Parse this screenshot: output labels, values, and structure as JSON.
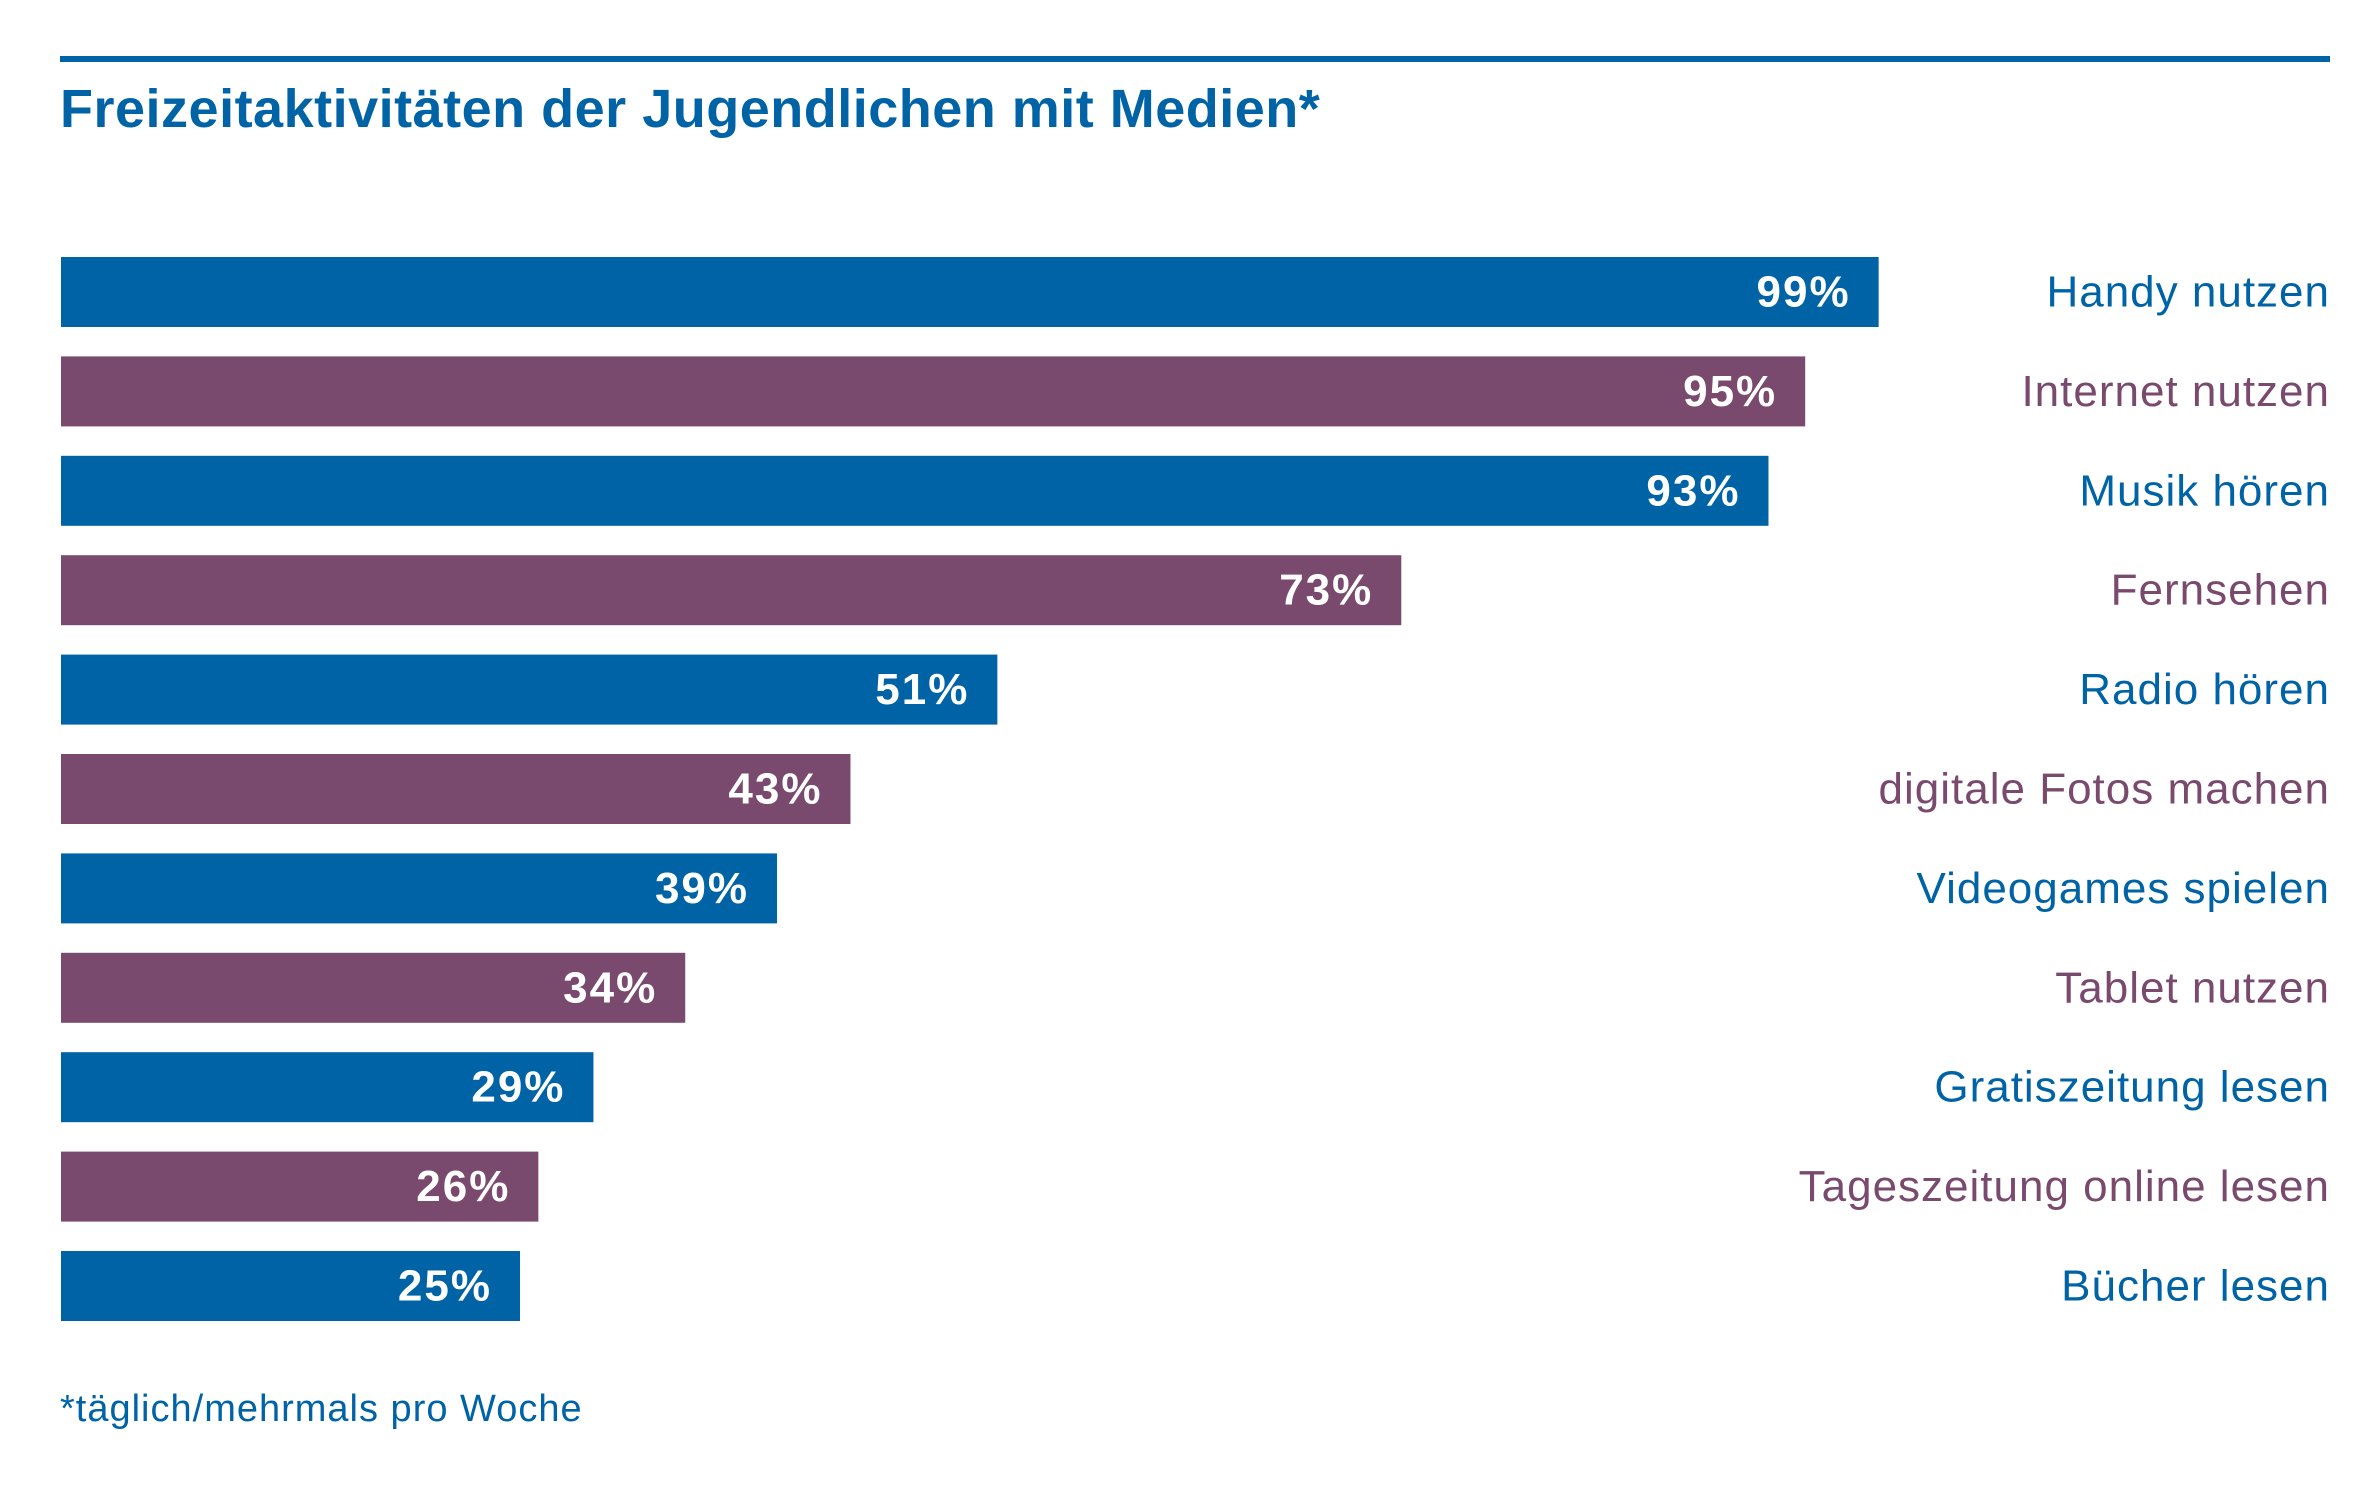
{
  "colors": {
    "blue": "#0063a6",
    "purple": "#7a4a6e",
    "value_text": "#ffffff"
  },
  "chart_data": {
    "type": "bar",
    "orientation": "horizontal",
    "title": "Freizeitaktivitäten der Jugendlichen mit Medien*",
    "footnote": "*täglich/mehrmals pro Woche",
    "xlim": [
      0,
      100
    ],
    "unit": "%",
    "categories": [
      "Handy nutzen",
      "Internet nutzen",
      "Musik hören",
      "Fernsehen",
      "Radio hören",
      "digitale Fotos machen",
      "Videogames spielen",
      "Tablet nutzen",
      "Gratiszeitung lesen",
      "Tageszeitung online lesen",
      "Bücher lesen"
    ],
    "values": [
      99,
      95,
      93,
      73,
      51,
      43,
      39,
      34,
      29,
      26,
      25
    ],
    "value_labels": [
      "99%",
      "95%",
      "93%",
      "73%",
      "51%",
      "43%",
      "39%",
      "34%",
      "29%",
      "26%",
      "25%"
    ],
    "bar_colors": [
      "blue",
      "purple",
      "blue",
      "purple",
      "blue",
      "purple",
      "blue",
      "purple",
      "blue",
      "purple",
      "blue"
    ],
    "legend": "none",
    "grid": false
  }
}
